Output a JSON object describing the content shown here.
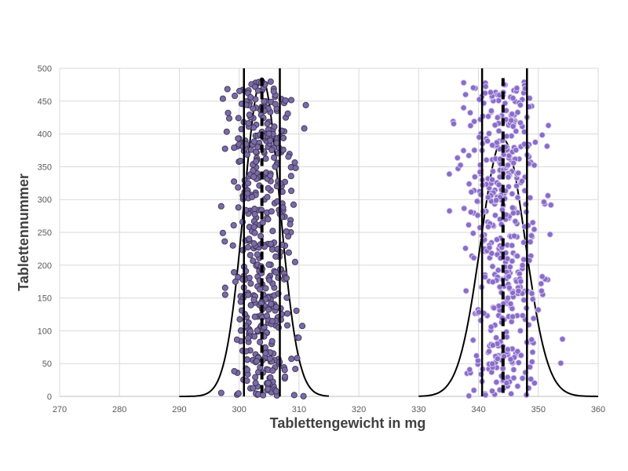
{
  "chart_data": {
    "type": "scatter",
    "xlabel": "Tablettengewicht in mg",
    "ylabel": "Tablettennummer",
    "xlim": [
      270,
      360
    ],
    "ylim": [
      0,
      500
    ],
    "x_ticks": [
      270,
      280,
      290,
      300,
      310,
      320,
      330,
      340,
      350,
      360
    ],
    "y_ticks": [
      0,
      50,
      100,
      150,
      200,
      250,
      300,
      350,
      400,
      450,
      500
    ],
    "grid": true,
    "legend": "none",
    "groups": [
      {
        "color": "#7b6aa8",
        "edge_color": "#3d3552",
        "mean": 303.8,
        "limits": [
          300.8,
          306.8
        ],
        "normal_curve": {
          "mean": 303.8,
          "sd": 3.0,
          "peak": 485,
          "x_range": [
            290,
            315
          ]
        },
        "points": {
          "count": 480,
          "x_range": [
            297,
            312
          ],
          "y_range": [
            0,
            480
          ]
        }
      },
      {
        "color": "#8a6cc9",
        "edge_color": "#d9cff0",
        "mean": 344.1,
        "limits": [
          340.6,
          348.1
        ],
        "normal_curve": {
          "mean": 344.1,
          "sd": 3.7,
          "peak": 392,
          "x_range": [
            330,
            360
          ]
        },
        "points": {
          "count": 480,
          "x_range": [
            334,
            355
          ],
          "y_range": [
            0,
            480
          ]
        }
      }
    ]
  }
}
